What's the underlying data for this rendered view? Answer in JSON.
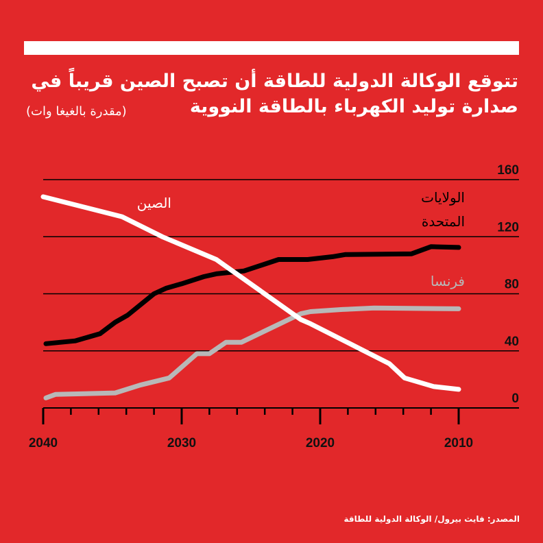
{
  "header": {
    "title_line1": "تتوقع الوكالة الدولية للطاقة أن تصبح الصين قريباً في",
    "title_line2": "صدارة توليد الكهرباء بالطاقة النووية",
    "subtitle": "(مقدرة بالغيغا وات)"
  },
  "source": "المصدر: فايث بيرول/ الوكالة الدولية للطاقة",
  "colors": {
    "background": "#e2282a",
    "china": "#ffffff",
    "usa": "#000000",
    "france": "#b8b8b8"
  },
  "chart_data": {
    "type": "line",
    "title": "تتوقع الوكالة الدولية للطاقة أن تصبح الصين قريباً في صدارة توليد الكهرباء بالطاقة النووية",
    "ylabel": "مقدرة بالغيغا وات",
    "xlabel": "",
    "xlim": [
      2040,
      2010
    ],
    "ylim": [
      0,
      160
    ],
    "x_ticks": [
      "2040",
      "2030",
      "2020",
      "2010"
    ],
    "y_ticks": [
      "0",
      "40",
      "80",
      "120",
      "160"
    ],
    "grid": true,
    "series": [
      {
        "name": "الصين",
        "color": "#ffffff",
        "points": [
          [
            2040,
            148
          ],
          [
            2034.3,
            134
          ],
          [
            2031.4,
            120
          ],
          [
            2027.5,
            104
          ],
          [
            2021.4,
            62
          ],
          [
            2020.7,
            59
          ],
          [
            2015,
            31
          ],
          [
            2013.9,
            21
          ],
          [
            2011.8,
            15
          ],
          [
            2010,
            13
          ]
        ]
      },
      {
        "name": "الولايات المتحدة",
        "color": "#000000",
        "points": [
          [
            2039.8,
            45
          ],
          [
            2037.7,
            47
          ],
          [
            2035.9,
            52
          ],
          [
            2034.8,
            60
          ],
          [
            2033.9,
            65
          ],
          [
            2032,
            80
          ],
          [
            2031.1,
            84
          ],
          [
            2030,
            87
          ],
          [
            2028.4,
            92
          ],
          [
            2027.5,
            94
          ],
          [
            2025.5,
            96
          ],
          [
            2023,
            104
          ],
          [
            2020.9,
            104
          ],
          [
            2019.1,
            106
          ],
          [
            2018.2,
            107.5
          ],
          [
            2013.4,
            108
          ],
          [
            2012,
            113
          ],
          [
            2010,
            112.5
          ]
        ]
      },
      {
        "name": "فرنسا",
        "color": "#b8b8b8",
        "points": [
          [
            2039.8,
            7
          ],
          [
            2039.1,
            9.5
          ],
          [
            2034.8,
            10.5
          ],
          [
            2033,
            16
          ],
          [
            2030.9,
            21
          ],
          [
            2028.9,
            38
          ],
          [
            2028,
            38
          ],
          [
            2026.8,
            46
          ],
          [
            2025.7,
            46
          ],
          [
            2021.4,
            66
          ],
          [
            2020.7,
            67.5
          ],
          [
            2018.4,
            69
          ],
          [
            2016.1,
            70
          ],
          [
            2010,
            69.5
          ]
        ]
      }
    ],
    "labels": {
      "china": "الصين",
      "usa_line1": "الولايات",
      "usa_line2": "المتحدة",
      "france": "فرنسا"
    }
  }
}
